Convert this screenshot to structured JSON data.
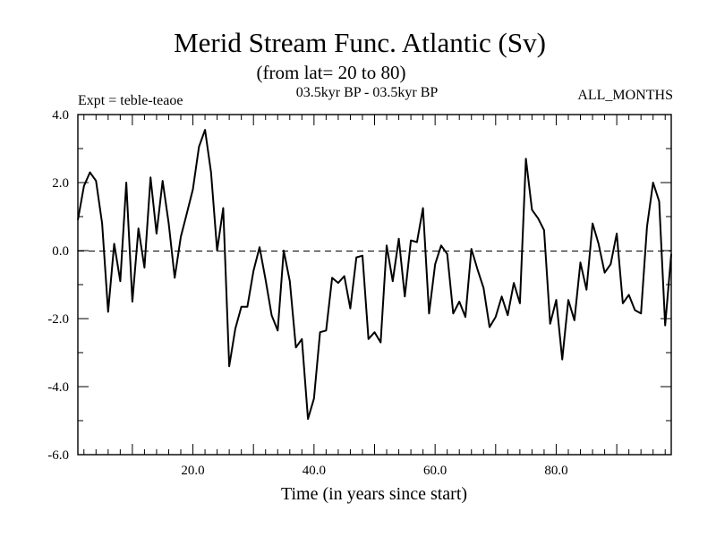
{
  "chart_data": {
    "type": "line",
    "title": "Merid Stream Func. Atlantic (Sv)",
    "subtitle": "(from lat= 20 to 80)",
    "period_label": "03.5kyr BP - 03.5kyr BP",
    "experiment_label": "Expt = teble-teaoe",
    "months_label": "ALL_MONTHS",
    "xlabel": "Time (in years since start)",
    "ylabel": "",
    "xlim": [
      1,
      99
    ],
    "ylim": [
      -6,
      4
    ],
    "x_ticks": [
      20,
      40,
      60,
      80
    ],
    "x_tick_labels": [
      "20.0",
      "40.0",
      "60.0",
      "80.0"
    ],
    "y_ticks": [
      4,
      2,
      0,
      -2,
      -4,
      -6
    ],
    "y_tick_labels": [
      "4.0",
      "2.0",
      "0.0",
      "-2.0",
      "-4.0",
      "-6.0"
    ],
    "zero_line": true,
    "series": [
      {
        "name": "Merid Stream Func. Atlantic",
        "x": [
          1,
          2,
          3,
          4,
          5,
          6,
          7,
          8,
          9,
          10,
          11,
          12,
          13,
          14,
          15,
          16,
          17,
          18,
          19,
          20,
          21,
          22,
          23,
          24,
          25,
          26,
          27,
          28,
          29,
          30,
          31,
          32,
          33,
          34,
          35,
          36,
          37,
          38,
          39,
          40,
          41,
          42,
          43,
          44,
          45,
          46,
          47,
          48,
          49,
          50,
          51,
          52,
          53,
          54,
          55,
          56,
          57,
          58,
          59,
          60,
          61,
          62,
          63,
          64,
          65,
          66,
          67,
          68,
          69,
          70,
          71,
          72,
          73,
          74,
          75,
          76,
          77,
          78,
          79,
          80,
          81,
          82,
          83,
          84,
          85,
          86,
          87,
          88,
          89,
          90,
          91,
          92,
          93,
          94,
          95,
          96,
          97,
          98,
          99
        ],
        "values": [
          0.9,
          1.9,
          2.3,
          2.05,
          0.8,
          -1.8,
          0.2,
          -0.9,
          2.0,
          -1.5,
          0.65,
          -0.5,
          2.15,
          0.5,
          2.05,
          0.8,
          -0.8,
          0.4,
          1.1,
          1.8,
          3.05,
          3.55,
          2.3,
          0.0,
          1.25,
          -3.4,
          -2.3,
          -1.65,
          -1.65,
          -0.6,
          0.1,
          -0.85,
          -1.9,
          -2.35,
          0.0,
          -0.9,
          -2.85,
          -2.6,
          -4.95,
          -4.35,
          -2.4,
          -2.35,
          -0.8,
          -0.95,
          -0.75,
          -1.7,
          -0.2,
          -0.15,
          -2.6,
          -2.4,
          -2.7,
          0.15,
          -0.9,
          0.35,
          -1.35,
          0.3,
          0.25,
          1.25,
          -1.85,
          -0.4,
          0.15,
          -0.1,
          -1.85,
          -1.5,
          -1.95,
          0.05,
          -0.55,
          -1.1,
          -2.25,
          -1.95,
          -1.35,
          -1.9,
          -0.95,
          -1.55,
          2.7,
          1.2,
          0.95,
          0.6,
          -2.15,
          -1.45,
          -3.2,
          -1.45,
          -2.05,
          -0.35,
          -1.15,
          0.8,
          0.2,
          -0.65,
          -0.4,
          0.5,
          -1.55,
          -1.3,
          -1.75,
          -1.85,
          0.7,
          2.0,
          1.45,
          -2.2,
          -0.1
        ]
      }
    ]
  }
}
